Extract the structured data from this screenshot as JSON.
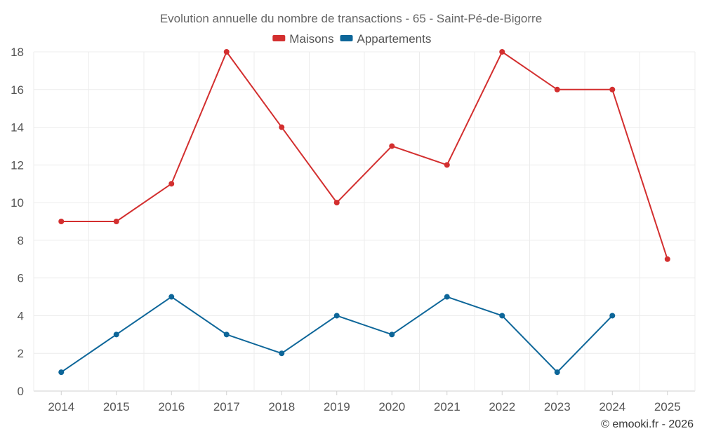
{
  "chart_data": {
    "type": "line",
    "title": "Evolution annuelle du nombre de transactions - 65 - Saint-Pé-de-Bigorre",
    "categories": [
      "2014",
      "2015",
      "2016",
      "2017",
      "2018",
      "2019",
      "2020",
      "2021",
      "2022",
      "2023",
      "2024",
      "2025"
    ],
    "series": [
      {
        "name": "Maisons",
        "color": "#d32f2f",
        "values": [
          9,
          9,
          11,
          18,
          14,
          10,
          13,
          12,
          18,
          16,
          16,
          7
        ]
      },
      {
        "name": "Appartements",
        "color": "#0d6699",
        "values": [
          1,
          3,
          5,
          3,
          2,
          4,
          3,
          5,
          4,
          1,
          4,
          null
        ]
      }
    ],
    "ylim": [
      0,
      18
    ],
    "yticks": [
      0,
      2,
      4,
      6,
      8,
      10,
      12,
      14,
      16,
      18
    ],
    "grid": true,
    "legend": "top-center",
    "xlabel": "",
    "ylabel": ""
  },
  "credit": "© emooki.fr - 2026"
}
